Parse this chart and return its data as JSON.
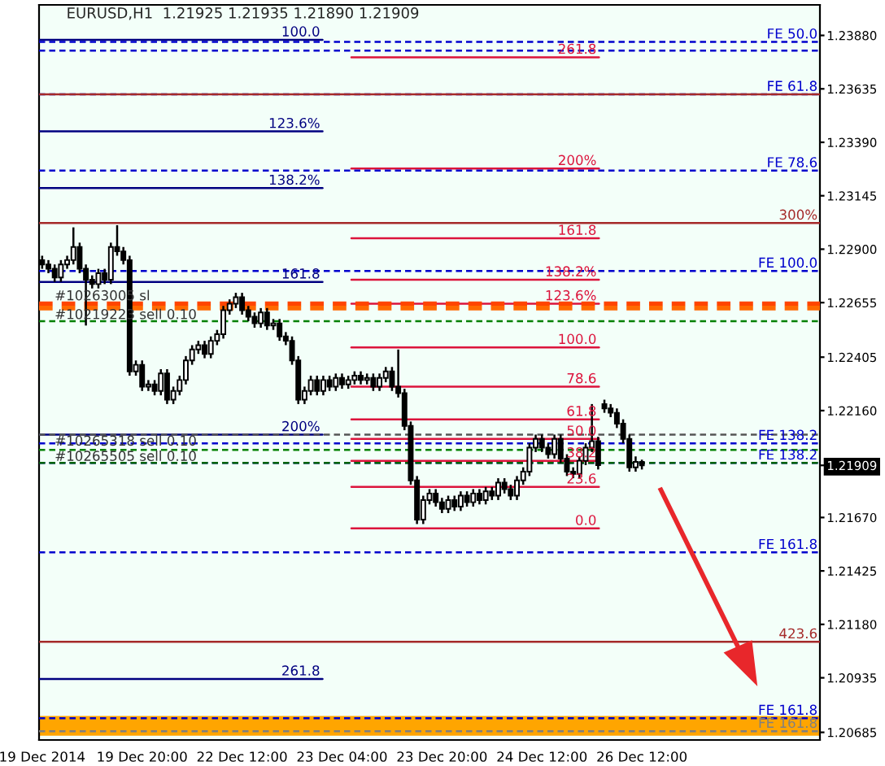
{
  "chart_data": {
    "type": "candlestick",
    "title": "EURUSD,H1  1.21925 1.21935 1.21890 1.21909",
    "categories": [
      "19 Dec 2014",
      null,
      null,
      null,
      null,
      null,
      null,
      null,
      null,
      null,
      null,
      null,
      null,
      null,
      null,
      null,
      "19 Dec 20:00",
      null,
      null,
      null,
      null,
      null,
      null,
      null,
      null,
      null,
      null,
      null,
      null,
      null,
      null,
      null,
      "22 Dec 12:00",
      null,
      null,
      null,
      null,
      null,
      null,
      null,
      null,
      null,
      null,
      null,
      null,
      null,
      null,
      null,
      "23 Dec 04:00",
      null,
      null,
      null,
      null,
      null,
      null,
      null,
      null,
      null,
      null,
      null,
      null,
      null,
      null,
      null,
      "23 Dec 20:00",
      null,
      null,
      null,
      null,
      null,
      null,
      null,
      null,
      null,
      null,
      null,
      null,
      null,
      null,
      null,
      "24 Dec 12:00",
      null,
      null,
      null,
      null,
      null,
      null,
      null,
      null,
      null,
      null,
      null,
      null,
      null,
      null,
      null,
      "26 Dec 12:00",
      null,
      null,
      null,
      null,
      null,
      null,
      null,
      null,
      null,
      null,
      null,
      null,
      null,
      null,
      null,
      null,
      null,
      null,
      null,
      null,
      null,
      null,
      null,
      null,
      null,
      null,
      null,
      null
    ],
    "ohlc": [
      [
        1.2285,
        1.2287,
        1.2281,
        1.2283
      ],
      [
        1.2283,
        1.2285,
        1.2279,
        1.2281
      ],
      [
        1.2281,
        1.2283,
        1.2275,
        1.2277
      ],
      [
        1.2277,
        1.2285,
        1.2275,
        1.2283
      ],
      [
        1.2283,
        1.2287,
        1.2281,
        1.2285
      ],
      [
        1.2285,
        1.23,
        1.2283,
        1.2291
      ],
      [
        1.2291,
        1.2293,
        1.2279,
        1.2281
      ],
      [
        1.2281,
        1.2283,
        1.2255,
        1.2276
      ],
      [
        1.2276,
        1.2278,
        1.2272,
        1.2274
      ],
      [
        1.2274,
        1.2281,
        1.2272,
        1.2279
      ],
      [
        1.2279,
        1.2281,
        1.2274,
        1.2276
      ],
      [
        1.2276,
        1.2293,
        1.2274,
        1.2291
      ],
      [
        1.2291,
        1.2301,
        1.2287,
        1.2289
      ],
      [
        1.2289,
        1.2291,
        1.2283,
        1.2285
      ],
      [
        1.2285,
        1.2287,
        1.2232,
        1.2234
      ],
      [
        1.2234,
        1.2239,
        1.2232,
        1.2237
      ],
      [
        1.2237,
        1.2239,
        1.2225,
        1.2227
      ],
      [
        1.2227,
        1.223,
        1.2225,
        1.2228
      ],
      [
        1.2228,
        1.223,
        1.2223,
        1.2225
      ],
      [
        1.2225,
        1.2235,
        1.2223,
        1.2233
      ],
      [
        1.2233,
        1.2235,
        1.2219,
        1.2221
      ],
      [
        1.2221,
        1.2227,
        1.2219,
        1.2225
      ],
      [
        1.2225,
        1.2232,
        1.2223,
        1.223
      ],
      [
        1.223,
        1.2241,
        1.2228,
        1.2239
      ],
      [
        1.2239,
        1.2246,
        1.2237,
        1.2244
      ],
      [
        1.2244,
        1.2248,
        1.2242,
        1.2246
      ],
      [
        1.2246,
        1.2248,
        1.224,
        1.2242
      ],
      [
        1.2242,
        1.225,
        1.224,
        1.2248
      ],
      [
        1.2248,
        1.2253,
        1.2246,
        1.2251
      ],
      [
        1.2251,
        1.2264,
        1.2249,
        1.2262
      ],
      [
        1.2262,
        1.2267,
        1.226,
        1.2265
      ],
      [
        1.2265,
        1.227,
        1.2263,
        1.2268
      ],
      [
        1.2268,
        1.227,
        1.226,
        1.2262
      ],
      [
        1.2262,
        1.2264,
        1.2257,
        1.2259
      ],
      [
        1.2259,
        1.2261,
        1.2254,
        1.2256
      ],
      [
        1.2256,
        1.2263,
        1.2254,
        1.2261
      ],
      [
        1.2261,
        1.2263,
        1.2253,
        1.2255
      ],
      [
        1.2255,
        1.2258,
        1.2253,
        1.2256
      ],
      [
        1.2256,
        1.2258,
        1.2248,
        1.225
      ],
      [
        1.225,
        1.2252,
        1.2246,
        1.2248
      ],
      [
        1.2248,
        1.225,
        1.2237,
        1.2239
      ],
      [
        1.2239,
        1.2241,
        1.2219,
        1.2221
      ],
      [
        1.2221,
        1.2227,
        1.2219,
        1.2225
      ],
      [
        1.2225,
        1.2232,
        1.2223,
        1.223
      ],
      [
        1.223,
        1.2232,
        1.2223,
        1.2225
      ],
      [
        1.2225,
        1.2232,
        1.2223,
        1.223
      ],
      [
        1.223,
        1.2232,
        1.2225,
        1.2227
      ],
      [
        1.2227,
        1.2233,
        1.2225,
        1.2231
      ],
      [
        1.2231,
        1.2233,
        1.2226,
        1.2228
      ],
      [
        1.2228,
        1.2232,
        1.2226,
        1.223
      ],
      [
        1.223,
        1.2234,
        1.2228,
        1.2232
      ],
      [
        1.2232,
        1.2234,
        1.2228,
        1.223
      ],
      [
        1.223,
        1.2233,
        1.2228,
        1.2231
      ],
      [
        1.2231,
        1.2233,
        1.2225,
        1.2227
      ],
      [
        1.2227,
        1.2233,
        1.2225,
        1.2231
      ],
      [
        1.2231,
        1.2236,
        1.2229,
        1.2234
      ],
      [
        1.2234,
        1.2236,
        1.2225,
        1.2227
      ],
      [
        1.2227,
        1.2244,
        1.2222,
        1.2224
      ],
      [
        1.2224,
        1.2226,
        1.2207,
        1.2209
      ],
      [
        1.2209,
        1.2211,
        1.2182,
        1.2184
      ],
      [
        1.2184,
        1.2186,
        1.2164,
        1.2166
      ],
      [
        1.2166,
        1.2177,
        1.2164,
        1.2175
      ],
      [
        1.2175,
        1.218,
        1.2173,
        1.2178
      ],
      [
        1.2178,
        1.218,
        1.2172,
        1.2174
      ],
      [
        1.2174,
        1.2176,
        1.2169,
        1.2171
      ],
      [
        1.2171,
        1.2177,
        1.2169,
        1.2175
      ],
      [
        1.2175,
        1.2177,
        1.217,
        1.2172
      ],
      [
        1.2172,
        1.2179,
        1.217,
        1.2177
      ],
      [
        1.2177,
        1.2179,
        1.2172,
        1.2174
      ],
      [
        1.2174,
        1.218,
        1.2172,
        1.2178
      ],
      [
        1.2178,
        1.218,
        1.2173,
        1.2175
      ],
      [
        1.2175,
        1.2181,
        1.2173,
        1.2179
      ],
      [
        1.2179,
        1.2181,
        1.2175,
        1.2177
      ],
      [
        1.2177,
        1.2185,
        1.2175,
        1.2183
      ],
      [
        1.2183,
        1.2185,
        1.2178,
        1.218
      ],
      [
        1.218,
        1.2182,
        1.2175,
        1.2177
      ],
      [
        1.2177,
        1.2186,
        1.2175,
        1.2184
      ],
      [
        1.2184,
        1.219,
        1.2182,
        1.2188
      ],
      [
        1.2188,
        1.2201,
        1.2186,
        1.2199
      ],
      [
        1.2199,
        1.2205,
        1.2197,
        1.2203
      ],
      [
        1.2203,
        1.2205,
        1.2197,
        1.2199
      ],
      [
        1.2199,
        1.2201,
        1.2194,
        1.2196
      ],
      [
        1.2196,
        1.2205,
        1.2194,
        1.2203
      ],
      [
        1.2203,
        1.2205,
        1.2192,
        1.2194
      ],
      [
        1.2194,
        1.2196,
        1.2186,
        1.2188
      ],
      [
        1.2188,
        1.219,
        1.2185,
        1.2187
      ],
      [
        1.2187,
        1.2195,
        1.2185,
        1.2193
      ],
      [
        1.2193,
        1.2201,
        1.2191,
        1.2199
      ],
      [
        1.2199,
        1.2219,
        1.2197,
        1.2202
      ],
      [
        1.2202,
        1.2204,
        1.2189,
        1.2191
      ],
      [
        1.2219,
        1.2221,
        1.2215,
        1.2217
      ],
      [
        1.2217,
        1.2219,
        1.2213,
        1.2215
      ],
      [
        1.2215,
        1.2217,
        1.2208,
        1.221
      ],
      [
        1.221,
        1.2212,
        1.2201,
        1.2203
      ],
      [
        1.2203,
        1.2205,
        1.2188,
        1.219
      ],
      [
        1.219,
        1.2195,
        1.2188,
        1.21925
      ],
      [
        1.21925,
        1.21935,
        1.2189,
        1.21909
      ],
      null,
      null,
      null,
      null,
      null,
      null,
      null,
      null,
      null,
      null,
      null,
      null,
      null,
      null,
      null,
      null,
      null,
      null,
      null,
      null,
      null,
      null,
      null,
      null,
      null,
      null,
      null,
      null
    ],
    "ylim": [
      1.2065,
      1.2402
    ],
    "yticks": [
      {
        "value": 1.2388,
        "label": "1.23880"
      },
      {
        "value": 1.23635,
        "label": "1.23635"
      },
      {
        "value": 1.2339,
        "label": "1.23390"
      },
      {
        "value": 1.23145,
        "label": "1.23145"
      },
      {
        "value": 1.229,
        "label": "1.22900"
      },
      {
        "value": 1.22655,
        "label": "1.22655"
      },
      {
        "value": 1.22405,
        "label": "1.22405"
      },
      {
        "value": 1.2216,
        "label": "1.22160"
      },
      {
        "value": 1.21909,
        "label": "1.21909"
      },
      {
        "value": 1.2167,
        "label": "1.21670"
      },
      {
        "value": 1.21425,
        "label": "1.21425"
      },
      {
        "value": 1.2118,
        "label": "1.21180"
      },
      {
        "value": 1.20935,
        "label": "1.20935"
      },
      {
        "value": 1.20685,
        "label": "1.20685"
      }
    ],
    "bands": [
      {
        "axis": "y",
        "from": 1.2067,
        "to": 1.2076,
        "color": "#ffa500"
      }
    ],
    "ref_lines": [
      {
        "axis": "y",
        "value": 1.2386,
        "color": "#000080",
        "line_style": "solid"
      },
      {
        "axis": "y",
        "value": 1.2344,
        "color": "#000080",
        "line_style": "solid"
      },
      {
        "axis": "y",
        "value": 1.2318,
        "color": "#000080",
        "line_style": "solid"
      },
      {
        "axis": "y",
        "value": 1.2275,
        "color": "#000080",
        "line_style": "solid"
      },
      {
        "axis": "y",
        "value": 1.2205,
        "color": "#000080",
        "line_style": "solid"
      },
      {
        "axis": "y",
        "value": 1.2093,
        "color": "#000080",
        "line_style": "solid"
      },
      {
        "axis": "y",
        "value": 1.2378,
        "color": "#dc143c",
        "line_style": "solid"
      },
      {
        "axis": "y",
        "value": 1.2327,
        "color": "#dc143c",
        "line_style": "solid"
      },
      {
        "axis": "y",
        "value": 1.2295,
        "color": "#dc143c",
        "line_style": "solid"
      },
      {
        "axis": "y",
        "value": 1.2276,
        "color": "#dc143c",
        "line_style": "solid"
      },
      {
        "axis": "y",
        "value": 1.2265,
        "color": "#dc143c",
        "line_style": "solid"
      },
      {
        "axis": "y",
        "value": 1.2245,
        "color": "#dc143c",
        "line_style": "solid"
      },
      {
        "axis": "y",
        "value": 1.2227,
        "color": "#dc143c",
        "line_style": "solid"
      },
      {
        "axis": "y",
        "value": 1.2212,
        "color": "#dc143c",
        "line_style": "solid"
      },
      {
        "axis": "y",
        "value": 1.2203,
        "color": "#dc143c",
        "line_style": "solid"
      },
      {
        "axis": "y",
        "value": 1.2193,
        "color": "#dc143c",
        "line_style": "solid"
      },
      {
        "axis": "y",
        "value": 1.2181,
        "color": "#dc143c",
        "line_style": "solid"
      },
      {
        "axis": "y",
        "value": 1.2162,
        "color": "#dc143c",
        "line_style": "solid"
      },
      {
        "axis": "y",
        "value": 1.2385,
        "label": "FE 50.0",
        "color": "#0000cd",
        "line_style": "dashed"
      },
      {
        "axis": "y",
        "value": 1.2381,
        "color": "#0000cd",
        "line_style": "dashed"
      },
      {
        "axis": "y",
        "value": 1.2361,
        "label": "FE 61.8",
        "color": "#0000cd",
        "line_style": "dashed"
      },
      {
        "axis": "y",
        "value": 1.2326,
        "label": "FE 78.6",
        "color": "#0000cd",
        "line_style": "dashed"
      },
      {
        "axis": "y",
        "value": 1.228,
        "label": "FE 100.0",
        "color": "#0000cd",
        "line_style": "dashed"
      },
      {
        "axis": "y",
        "value": 1.2201,
        "label": "FE 138.2",
        "color": "#0000cd",
        "line_style": "dashed"
      },
      {
        "axis": "y",
        "value": 1.2192,
        "label": "FE 138.2",
        "color": "#0000cd",
        "line_style": "dashed"
      },
      {
        "axis": "y",
        "value": 1.2151,
        "label": "FE 161.8",
        "color": "#0000cd",
        "line_style": "dashed"
      },
      {
        "axis": "y",
        "value": 1.2075,
        "label": "FE 161.8",
        "color": "#0000cd",
        "line_style": "dashed"
      },
      {
        "axis": "y",
        "value": 1.2069,
        "label": "FE 161.8",
        "color": "#808080",
        "line_style": "dashed"
      },
      {
        "axis": "y",
        "value": 1.2361,
        "color": "#a52a2a",
        "line_style": "solid"
      },
      {
        "axis": "y",
        "value": 1.2302,
        "color": "#a52a2a",
        "line_style": "solid"
      },
      {
        "axis": "y",
        "value": 1.211,
        "color": "#a52a2a",
        "line_style": "solid"
      },
      {
        "axis": "y",
        "value": 1.2265,
        "label": "#10263005 sl",
        "color": "#ff4500",
        "line_style": "dashed"
      },
      {
        "axis": "y",
        "value": 1.2263,
        "label": "#10219223 sell 0.10",
        "color": "#ff6a00",
        "line_style": "dashed"
      },
      {
        "axis": "y",
        "value": 1.2257,
        "color": "#008000",
        "line_style": "dashed"
      },
      {
        "axis": "y",
        "value": 1.2205,
        "label": "#10265318 sell 0.10",
        "color": "#555555",
        "line_style": "dashed"
      },
      {
        "axis": "y",
        "value": 1.2198,
        "label": "#10265505 sell 0.10",
        "color": "#008000",
        "line_style": "dashed"
      },
      {
        "axis": "y",
        "value": 1.2192,
        "color": "#006400",
        "line_style": "dashed"
      }
    ],
    "annotations": [
      {
        "text": "100.0",
        "y": 1.2386
      },
      {
        "text": "123.6%",
        "y": 1.2344
      },
      {
        "text": "138.2%",
        "y": 1.2318
      },
      {
        "text": "161.8",
        "y": 1.2275
      },
      {
        "text": "200%",
        "y": 1.2205
      },
      {
        "text": "261.8",
        "y": 1.2093
      },
      {
        "text": "261.8",
        "y": 1.2378
      },
      {
        "text": "200%",
        "y": 1.2327
      },
      {
        "text": "161.8",
        "y": 1.2295
      },
      {
        "text": "138.2%",
        "y": 1.2276
      },
      {
        "text": "123.6%",
        "y": 1.2265
      },
      {
        "text": "100.0",
        "y": 1.2245
      },
      {
        "text": "78.6",
        "y": 1.2227
      },
      {
        "text": "61.8",
        "y": 1.2212
      },
      {
        "text": "50.0",
        "y": 1.2203
      },
      {
        "text": "38.2",
        "y": 1.2193
      },
      {
        "text": "23.6",
        "y": 1.2181
      },
      {
        "text": "0.0",
        "y": 1.2162
      },
      {
        "text": "300%",
        "y": 1.2302
      },
      {
        "text": "423.6",
        "y": 1.211
      }
    ]
  }
}
